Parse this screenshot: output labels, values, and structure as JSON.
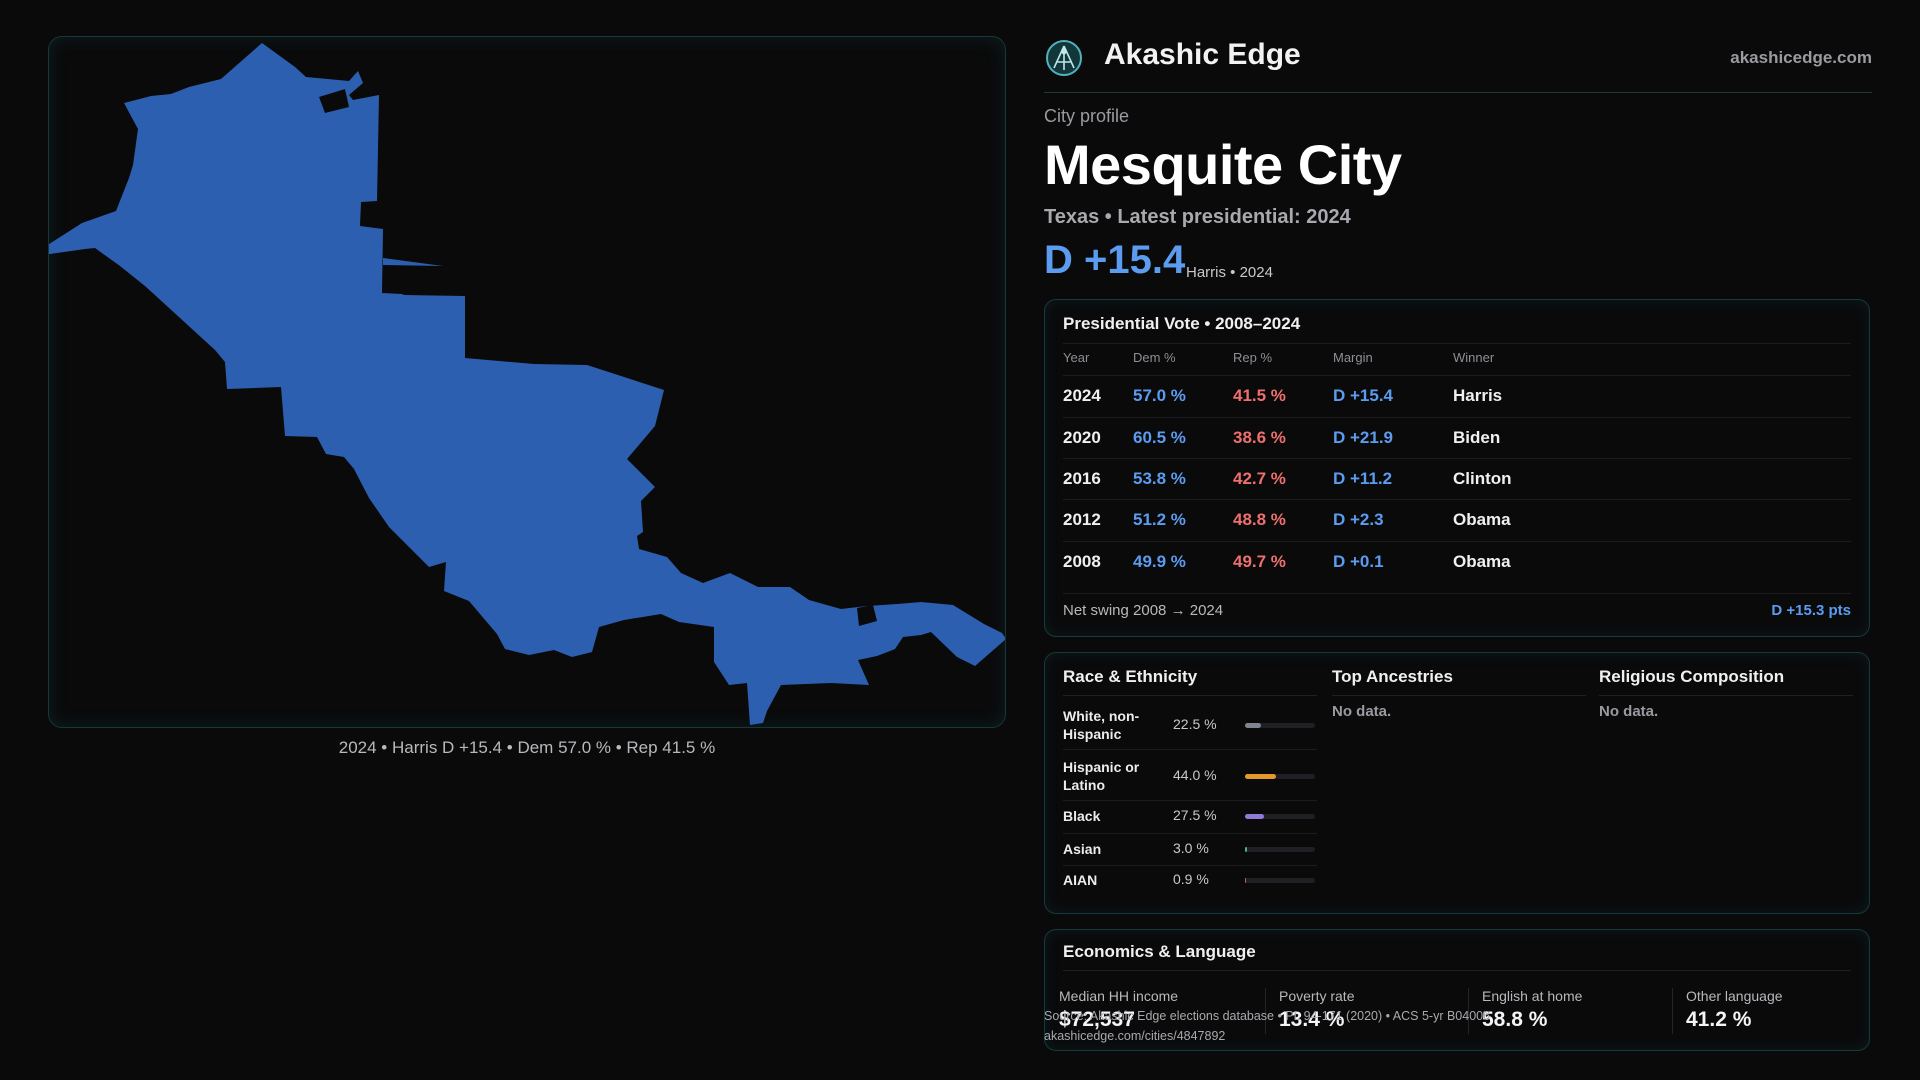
{
  "brand": {
    "name": "Akashic Edge",
    "site": "akashicedge.com"
  },
  "profile": {
    "eyebrow": "City profile",
    "city": "Mesquite City",
    "subline": "Texas • Latest presidential: 2024",
    "margin": "D +15.4",
    "margin_note": "Harris • 2024"
  },
  "map": {
    "caption": "2024 • Harris D +15.4 • Dem 57.0 % • Rep 41.5 %",
    "fill_color": "#2d5fb0"
  },
  "presidential": {
    "title": "Presidential Vote • 2008–2024",
    "headers": {
      "year": "Year",
      "dem": "Dem %",
      "rep": "Rep %",
      "margin": "Margin",
      "winner": "Winner"
    },
    "rows": [
      {
        "year": "2024",
        "dem": "57.0 %",
        "rep": "41.5 %",
        "margin": "D +15.4",
        "winner": "Harris"
      },
      {
        "year": "2020",
        "dem": "60.5 %",
        "rep": "38.6 %",
        "margin": "D +21.9",
        "winner": "Biden"
      },
      {
        "year": "2016",
        "dem": "53.8 %",
        "rep": "42.7 %",
        "margin": "D +11.2",
        "winner": "Clinton"
      },
      {
        "year": "2012",
        "dem": "51.2 %",
        "rep": "48.8 %",
        "margin": "D +2.3",
        "winner": "Obama"
      },
      {
        "year": "2008",
        "dem": "49.9 %",
        "rep": "49.7 %",
        "margin": "D +0.1",
        "winner": "Obama"
      }
    ],
    "swing_label": "Net swing 2008 → 2024",
    "swing_value": "D +15.3 pts"
  },
  "race": {
    "title": "Race & Ethnicity",
    "rows": [
      {
        "name": "White, non-Hispanic",
        "pct": "22.5 %",
        "value": 22.5,
        "color": "#7d8591"
      },
      {
        "name": "Hispanic or Latino",
        "pct": "44.0 %",
        "value": 44.0,
        "color": "#e39a2c"
      },
      {
        "name": "Black",
        "pct": "27.5 %",
        "value": 27.5,
        "color": "#8f7bd6"
      },
      {
        "name": "Asian",
        "pct": "3.0 %",
        "value": 3.0,
        "color": "#3cb39a"
      },
      {
        "name": "AIAN",
        "pct": "0.9 %",
        "value": 0.9,
        "color": "#c0605a"
      }
    ]
  },
  "ancestry": {
    "title": "Top Ancestries",
    "empty": "No data."
  },
  "religion": {
    "title": "Religious Composition",
    "empty": "No data."
  },
  "economics": {
    "title": "Economics & Language",
    "stats": [
      {
        "label": "Median HH income",
        "value": "$72,537"
      },
      {
        "label": "Poverty rate",
        "value": "13.4 %"
      },
      {
        "label": "English at home",
        "value": "58.8 %"
      },
      {
        "label": "Other language",
        "value": "41.2 %"
      }
    ]
  },
  "source": {
    "line1": "Source: Akashic Edge elections database • PL 94-171 (2020) • ACS 5-yr B04006",
    "line2": "akashicedge.com/cities/4847892"
  }
}
